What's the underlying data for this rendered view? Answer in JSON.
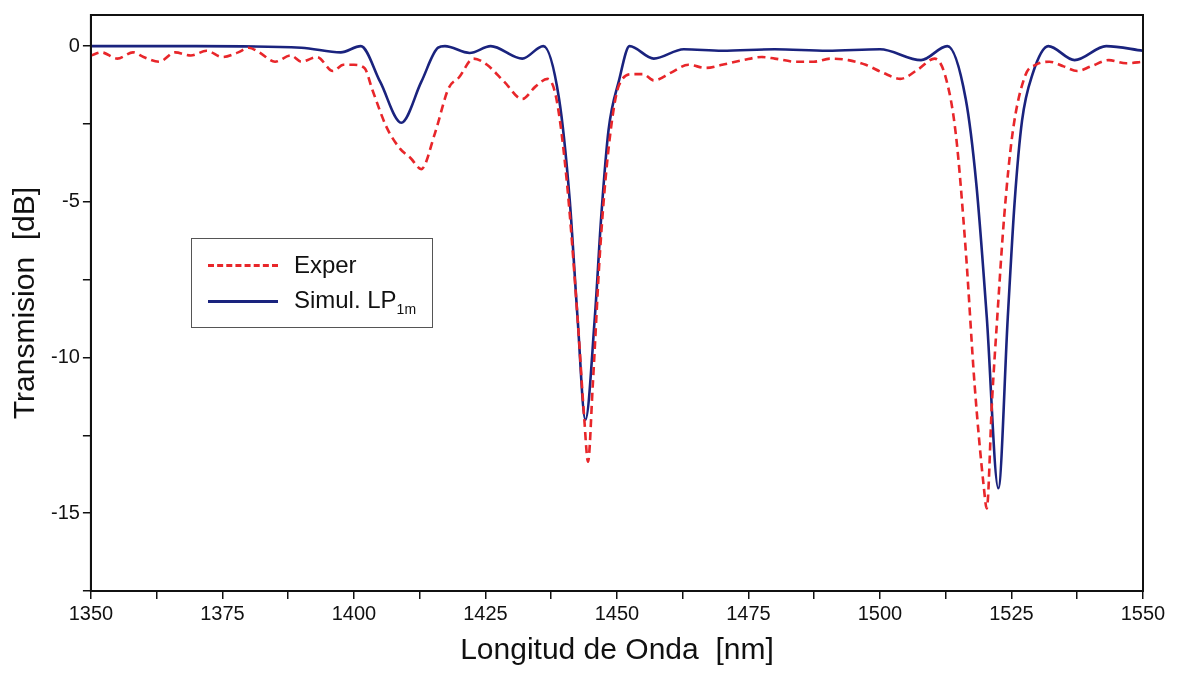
{
  "chart_data": {
    "type": "line",
    "xlabel": "Longitud de Onda  [nm]",
    "ylabel": "Transmision  [dB]",
    "xlim": [
      1350,
      1550
    ],
    "xticks": [
      1350,
      {
        "value": 1362.5,
        "label": null
      },
      1375,
      {
        "value": 1387.5,
        "label": null
      },
      1400,
      {
        "value": 1412.5,
        "label": null
      },
      1425,
      {
        "value": 1437.5,
        "label": null
      },
      1450,
      {
        "value": 1462.5,
        "label": null
      },
      1475,
      {
        "value": 1487.5,
        "label": null
      },
      1500,
      {
        "value": 1512.5,
        "label": null
      },
      1525,
      {
        "value": 1537.5,
        "label": null
      },
      1550
    ],
    "ylim": [
      -17.5,
      1
    ],
    "yticks": [
      {
        "value": -17.5,
        "label": null
      },
      -15,
      {
        "value": -12.5,
        "label": null
      },
      -10,
      {
        "value": -7.5,
        "label": null
      },
      -5,
      {
        "value": -2.5,
        "label": null
      },
      0
    ],
    "grid": false,
    "legend": "center left",
    "marker": "none",
    "series": [
      {
        "name": "Exper",
        "color": "#e8262a",
        "line_style": "dashed",
        "x": [
          1350,
          1352,
          1355,
          1358,
          1360,
          1363,
          1366,
          1369,
          1372,
          1375,
          1378,
          1380,
          1382,
          1385,
          1388,
          1390,
          1393,
          1396,
          1398,
          1400,
          1402,
          1403.5,
          1406.2,
          1408.8,
          1410.8,
          1412.8,
          1415.4,
          1418,
          1420,
          1422.7,
          1425.3,
          1428.6,
          1432,
          1434.5,
          1436.8,
          1438.5,
          1440.5,
          1442.5,
          1443.8,
          1444.5,
          1445.4,
          1446.8,
          1448.4,
          1450.4,
          1453,
          1455,
          1457,
          1460.3,
          1463.6,
          1466.9,
          1470,
          1474,
          1477.5,
          1480,
          1484,
          1487.4,
          1490.6,
          1494,
          1497.3,
          1500.5,
          1503.9,
          1507.2,
          1510.4,
          1512.4,
          1514.4,
          1516.3,
          1518,
          1519.7,
          1520.3,
          1521.3,
          1522.3,
          1523.6,
          1525.2,
          1527.6,
          1529.6,
          1532.2,
          1534.9,
          1537.5,
          1540.1,
          1543.5,
          1546.8,
          1550
        ],
        "values": [
          -0.3,
          -0.2,
          -0.4,
          -0.2,
          -0.35,
          -0.5,
          -0.2,
          -0.3,
          -0.15,
          -0.35,
          -0.2,
          -0.05,
          -0.2,
          -0.5,
          -0.3,
          -0.5,
          -0.35,
          -0.8,
          -0.6,
          -0.6,
          -0.7,
          -1.4,
          -2.6,
          -3.3,
          -3.6,
          -3.95,
          -2.8,
          -1.35,
          -1,
          -0.4,
          -0.6,
          -1.15,
          -1.7,
          -1.3,
          -1.05,
          -1.7,
          -4.4,
          -8.7,
          -12,
          -13.35,
          -10.9,
          -6.55,
          -3.3,
          -1.25,
          -0.9,
          -0.9,
          -1.1,
          -0.85,
          -0.6,
          -0.7,
          -0.6,
          -0.45,
          -0.35,
          -0.4,
          -0.5,
          -0.5,
          -0.4,
          -0.45,
          -0.6,
          -0.85,
          -1.05,
          -0.75,
          -0.4,
          -0.95,
          -2.8,
          -6.55,
          -10.9,
          -14.1,
          -14.85,
          -11.4,
          -8.7,
          -5.5,
          -2.8,
          -0.95,
          -0.6,
          -0.5,
          -0.65,
          -0.8,
          -0.65,
          -0.45,
          -0.55,
          -0.5
        ]
      },
      {
        "name": "Simul. LP$_{1m}$",
        "color": "#1a237e",
        "line_style": "solid",
        "x": [
          1350,
          1370,
          1390,
          1397.5,
          1401.3,
          1405,
          1409,
          1412.8,
          1416,
          1417.3,
          1422,
          1426,
          1432,
          1436,
          1439,
          1441,
          1442.5,
          1444,
          1445.8,
          1447,
          1448.4,
          1450.4,
          1452.4,
          1457,
          1462.7,
          1470,
          1480,
          1490,
          1500,
          1507.8,
          1512.8,
          1516.3,
          1518.3,
          1520.3,
          1522.5,
          1524.3,
          1525.6,
          1527,
          1529,
          1532,
          1537,
          1543,
          1550
        ],
        "values": [
          0,
          0,
          -0.05,
          -0.2,
          0,
          -1.15,
          -2.46,
          -1.15,
          -0.05,
          0,
          -0.22,
          0,
          -0.4,
          0,
          -1.7,
          -4.9,
          -8.7,
          -12,
          -8.7,
          -5.5,
          -2.7,
          -1.1,
          0,
          -0.4,
          -0.1,
          -0.15,
          -0.1,
          -0.15,
          -0.1,
          -0.45,
          0,
          -1.7,
          -4.4,
          -8.7,
          -14.2,
          -8.7,
          -5,
          -2.4,
          -0.9,
          0,
          -0.45,
          0,
          -0.15
        ]
      }
    ]
  }
}
